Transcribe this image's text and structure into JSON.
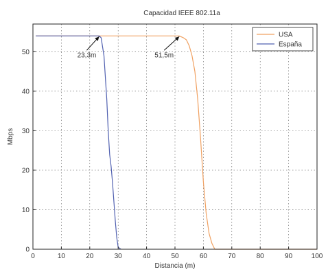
{
  "chart_data": {
    "type": "line",
    "title": "Capacidad IEEE 802.11a",
    "xlabel": "Distancia (m)",
    "ylabel": "Mbps",
    "xlim": [
      0,
      100
    ],
    "ylim": [
      0,
      57
    ],
    "x_ticks": [
      "0",
      "10",
      "20",
      "30",
      "40",
      "50",
      "60",
      "70",
      "80",
      "90",
      "100"
    ],
    "y_ticks": [
      "0",
      "10",
      "20",
      "30",
      "40",
      "50"
    ],
    "grid": true,
    "legend_position": "top-right",
    "series": [
      {
        "name": "USA",
        "color": "#f0a060",
        "x": [
          1,
          50,
          51.5,
          53,
          54,
          55,
          56,
          57,
          58,
          59,
          60,
          61,
          62,
          63,
          64,
          100
        ],
        "y": [
          54,
          54,
          54,
          53.5,
          53,
          51.5,
          49,
          45,
          38,
          28,
          17,
          9,
          4,
          1.5,
          0,
          0
        ]
      },
      {
        "name": "España",
        "color": "#5060b0",
        "x": [
          1,
          23,
          23.3,
          24,
          25,
          26,
          26.5,
          27,
          27.5,
          28,
          28.5,
          29,
          29.5,
          30,
          31
        ],
        "y": [
          54,
          54,
          54,
          53.5,
          49,
          38,
          30,
          24,
          21,
          17,
          12,
          7,
          3,
          0.5,
          0
        ]
      }
    ],
    "annotations": [
      {
        "text": "23,3m",
        "x": 23.3,
        "y": 54
      },
      {
        "text": "51,5m",
        "x": 51.5,
        "y": 54
      }
    ]
  }
}
